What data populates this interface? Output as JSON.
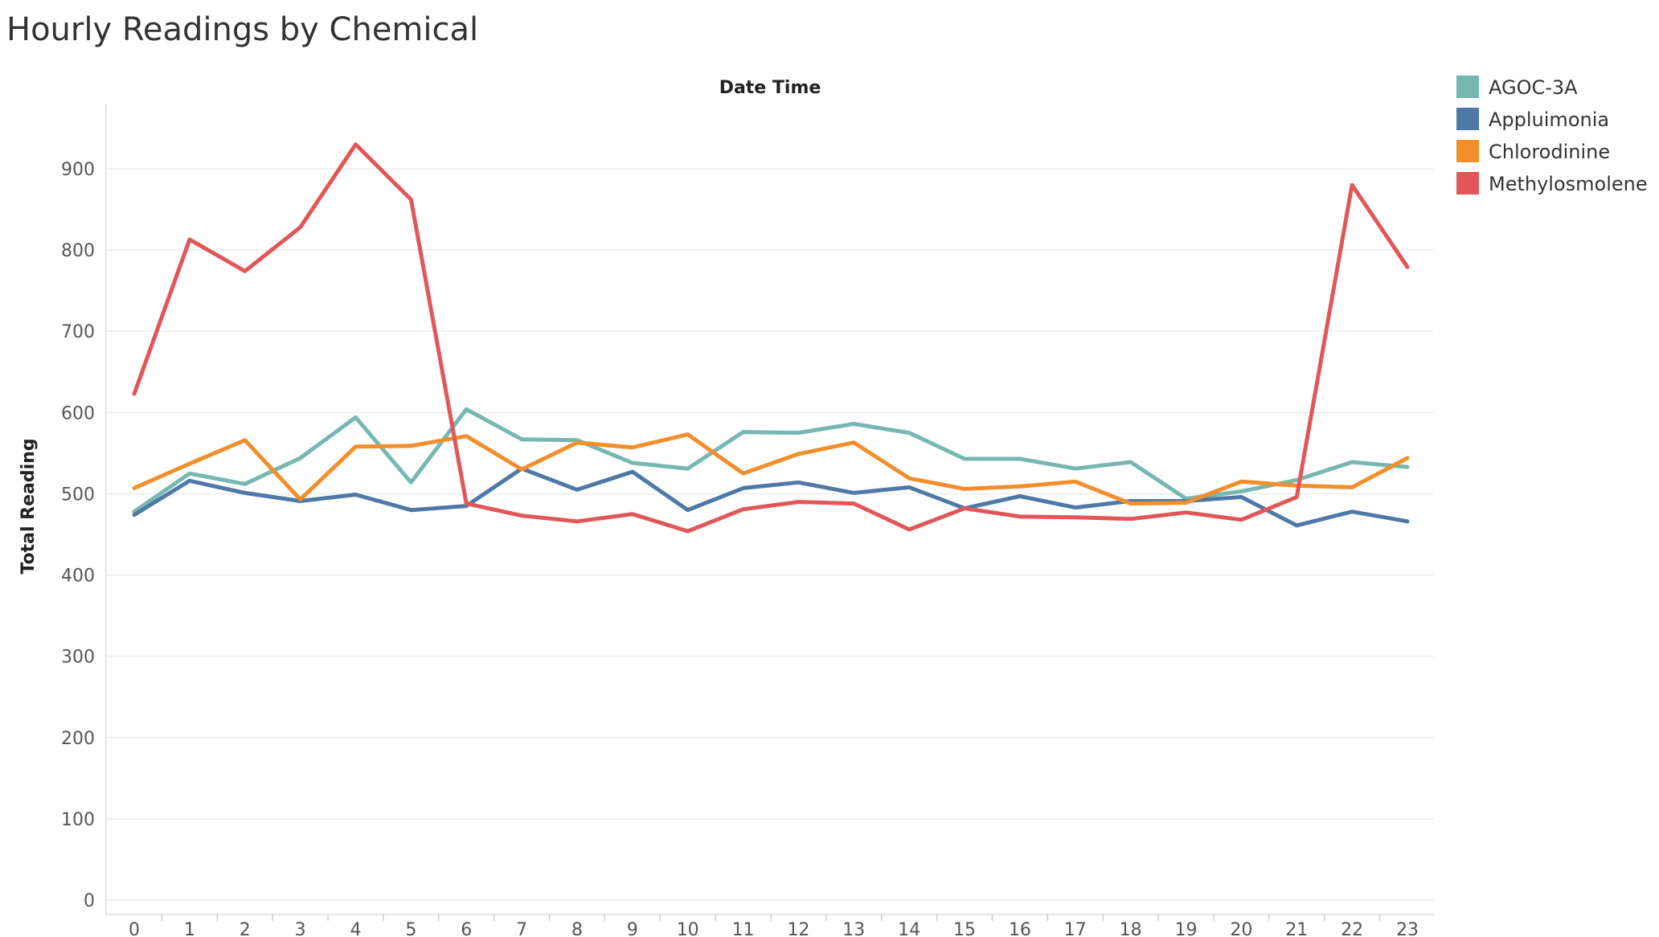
{
  "chart_data": {
    "type": "line",
    "title": "Hourly Readings by Chemical",
    "xlabel": "Date Time",
    "ylabel": "Total Reading",
    "x": [
      0,
      1,
      2,
      3,
      4,
      5,
      6,
      7,
      8,
      9,
      10,
      11,
      12,
      13,
      14,
      15,
      16,
      17,
      18,
      19,
      20,
      21,
      22,
      23
    ],
    "ylim": [
      0,
      960
    ],
    "yticks": [
      0,
      100,
      200,
      300,
      400,
      500,
      600,
      700,
      800,
      900
    ],
    "grid": true,
    "legend_position": "top-right",
    "series": [
      {
        "name": "AGOC-3A",
        "color": "#76b7b2",
        "values": [
          478,
          525,
          512,
          544,
          594,
          514,
          604,
          567,
          566,
          538,
          531,
          576,
          575,
          586,
          575,
          543,
          543,
          531,
          539,
          494,
          503,
          517,
          539,
          533
        ]
      },
      {
        "name": "Appluimonia",
        "color": "#4e79a7",
        "values": [
          474,
          516,
          501,
          491,
          499,
          480,
          485,
          531,
          505,
          527,
          480,
          507,
          514,
          501,
          508,
          482,
          497,
          483,
          491,
          491,
          496,
          461,
          478,
          466
        ]
      },
      {
        "name": "Chlorodinine",
        "color": "#f28e2b",
        "values": [
          507,
          537,
          566,
          493,
          558,
          559,
          571,
          530,
          563,
          557,
          573,
          525,
          549,
          563,
          519,
          506,
          509,
          515,
          488,
          489,
          515,
          510,
          508,
          544
        ]
      },
      {
        "name": "Methylosmolene",
        "color": "#e15759",
        "values": [
          623,
          813,
          774,
          828,
          930,
          862,
          488,
          473,
          466,
          475,
          454,
          481,
          490,
          488,
          456,
          482,
          472,
          471,
          469,
          477,
          468,
          496,
          880,
          779
        ]
      }
    ]
  }
}
